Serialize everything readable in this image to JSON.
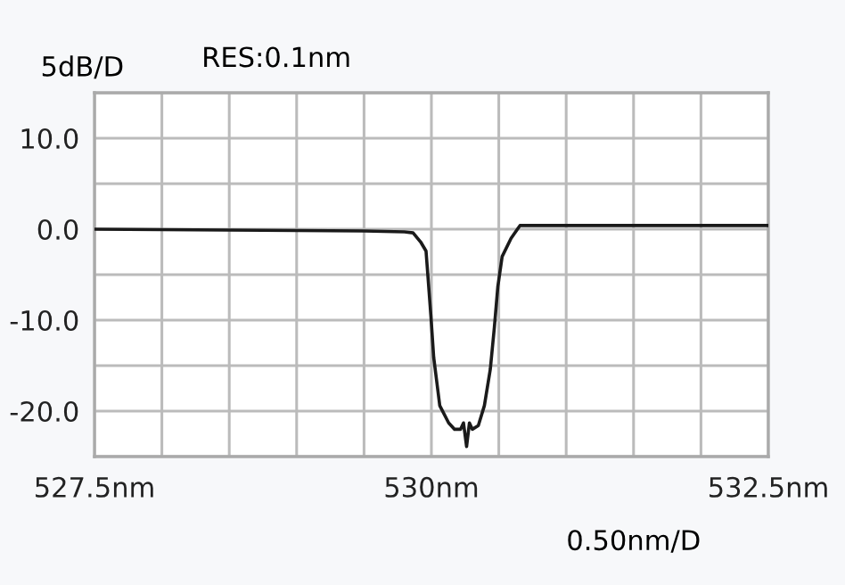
{
  "chart_data": {
    "type": "line",
    "title": "RES:0.1nm",
    "ylabel": "5dB/D",
    "xlabel": "0.50nm/D",
    "x": [
      527.5,
      528.5,
      529.5,
      529.8,
      529.864,
      529.92,
      529.96,
      529.996,
      530.017,
      530.062,
      530.128,
      530.172,
      530.216,
      530.238,
      530.261,
      530.282,
      530.304,
      530.348,
      530.393,
      530.437,
      530.467,
      530.493,
      530.525,
      530.591,
      530.657,
      531.5,
      532.5
    ],
    "series": [
      {
        "color": "#1a1a1a",
        "values": [
          0.0,
          -0.1,
          -0.2,
          -0.3,
          -0.4,
          -1.4,
          -2.4,
          -9.5,
          -14.1,
          -19.4,
          -21.3,
          -22,
          -22,
          -21.3,
          -23.9,
          -21.3,
          -22,
          -21.6,
          -19.4,
          -15.4,
          -10.8,
          -6.3,
          -3.0,
          -1.0,
          0.4,
          0.4,
          0.4
        ]
      }
    ],
    "xlim": [
      527.5,
      532.5
    ],
    "xticks": [
      {
        "value": 527.5,
        "label": "527.5nm"
      },
      {
        "value": 528,
        "label": null
      },
      {
        "value": 528.5,
        "label": null
      },
      {
        "value": 529,
        "label": null
      },
      {
        "value": 529.5,
        "label": null
      },
      {
        "value": 530,
        "label": "530nm"
      },
      {
        "value": 530.5,
        "label": null
      },
      {
        "value": 531,
        "label": null
      },
      {
        "value": 531.5,
        "label": null
      },
      {
        "value": 532,
        "label": null
      },
      {
        "value": 532.5,
        "label": "532.5nm"
      }
    ],
    "ylim": [
      -25,
      15
    ],
    "yticks": [
      {
        "value": -25,
        "label": null
      },
      {
        "value": -20,
        "label": "-20.0"
      },
      {
        "value": -15,
        "label": null
      },
      {
        "value": -10,
        "label": "-10.0"
      },
      {
        "value": -5,
        "label": null
      },
      {
        "value": 0,
        "label": "0.0"
      },
      {
        "value": 5,
        "label": null
      },
      {
        "value": 10,
        "label": "10.0"
      },
      {
        "value": 15,
        "label": null
      }
    ],
    "grid": true,
    "legend": false,
    "marker": "none",
    "line_style": "solid"
  }
}
